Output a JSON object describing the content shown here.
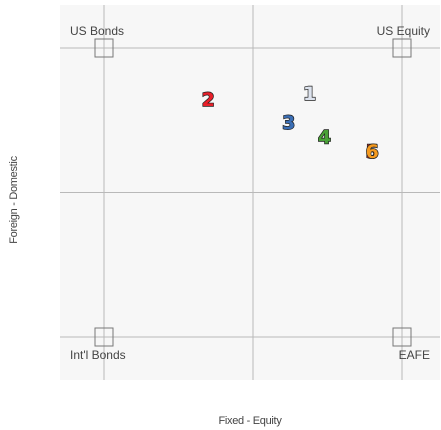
{
  "chart_data": {
    "type": "scatter",
    "title": "",
    "xlabel": "Fixed - Equity",
    "ylabel": "Foreign - Domestic",
    "xlim": [
      0,
      1
    ],
    "ylim": [
      0,
      1
    ],
    "grid": true,
    "corners": [
      {
        "label": "US Bonds",
        "x": 0,
        "y": 1
      },
      {
        "label": "US Equity",
        "x": 1,
        "y": 1
      },
      {
        "label": "Int'l Bonds",
        "x": 0,
        "y": 0
      },
      {
        "label": "EAFE",
        "x": 1,
        "y": 0
      }
    ],
    "points": [
      {
        "label": "1",
        "x": 0.69,
        "y": 0.84,
        "color": "#dde3ee"
      },
      {
        "label": "2",
        "x": 0.35,
        "y": 0.82,
        "color": "#e8202a"
      },
      {
        "label": "3",
        "x": 0.62,
        "y": 0.74,
        "color": "#3b6fb6"
      },
      {
        "label": "4",
        "x": 0.74,
        "y": 0.69,
        "color": "#4aa038"
      },
      {
        "label": "5",
        "x": 0.9,
        "y": 0.64,
        "color": "#d7342a"
      },
      {
        "label": "6",
        "x": 0.9,
        "y": 0.64,
        "color": "#f59a1e"
      }
    ]
  }
}
